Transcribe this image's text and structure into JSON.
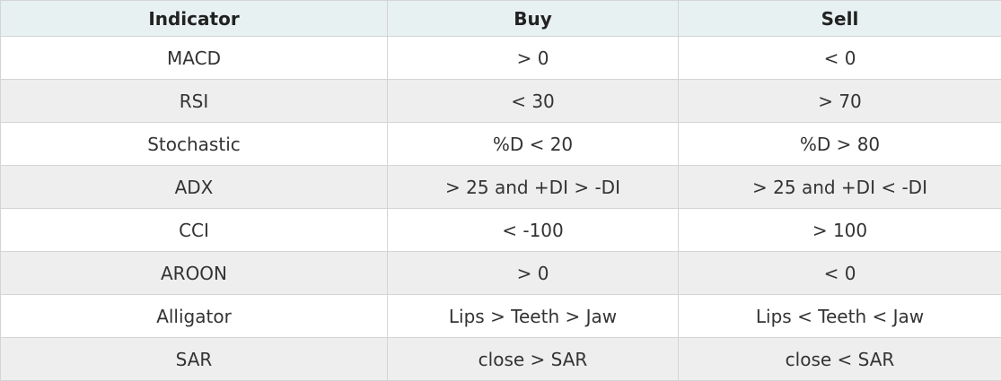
{
  "table": {
    "headers": [
      "Indicator",
      "Buy",
      "Sell"
    ],
    "rows": [
      [
        "MACD",
        "> 0",
        "< 0"
      ],
      [
        "RSI",
        "< 30",
        "> 70"
      ],
      [
        "Stochastic",
        "%D < 20",
        "%D > 80"
      ],
      [
        "ADX",
        "> 25 and +DI > -DI",
        "> 25 and +DI < -DI"
      ],
      [
        "CCI",
        "< -100",
        "> 100"
      ],
      [
        "AROON",
        "> 0",
        "< 0"
      ],
      [
        "Alligator",
        "Lips > Teeth > Jaw",
        "Lips < Teeth < Jaw"
      ],
      [
        "SAR",
        "close > SAR",
        "close < SAR"
      ]
    ]
  },
  "colors": {
    "header_background": "#e8f1f1",
    "row_odd_background": "#ffffff",
    "row_even_background": "#eeeeee",
    "border": "#d4d4d4",
    "text": "#333333"
  }
}
